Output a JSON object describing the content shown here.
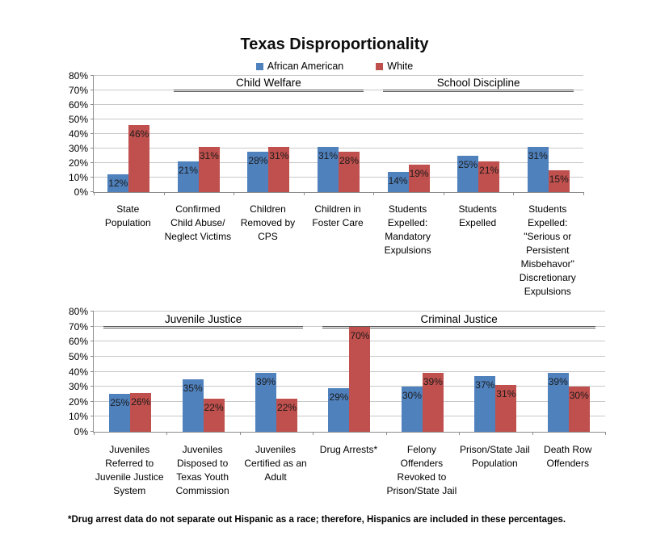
{
  "title": "Texas Disproportionality",
  "legend": [
    {
      "label": "African American",
      "color": "#4F81BD"
    },
    {
      "label": "White",
      "color": "#C0504D"
    }
  ],
  "footnote": "*Drug arrest data do not separate out Hispanic as a race; therefore, Hispanics are included in these percentages.",
  "colors": {
    "african_american": "#4F81BD",
    "white": "#C0504D",
    "gridline": "#c9c9c9",
    "axis": "#8c8c8c",
    "section_underline": "#595959"
  },
  "chart_data": [
    {
      "type": "bar",
      "title": "Texas Disproportionality (top chart)",
      "ylim": [
        0,
        80
      ],
      "yticks": [
        "0%",
        "10%",
        "20%",
        "30%",
        "40%",
        "50%",
        "60%",
        "70%",
        "80%"
      ],
      "grid": true,
      "legend_position": "top-center",
      "sections": [
        {
          "label": "Child Welfare",
          "start": 1,
          "end": 3
        },
        {
          "label": "School Discipline",
          "start": 4,
          "end": 6
        }
      ],
      "categories": [
        [
          "State",
          "Population"
        ],
        [
          "Confirmed",
          "Child Abuse/",
          "Neglect Victims"
        ],
        [
          "Children",
          "Removed by",
          "CPS"
        ],
        [
          "Children in",
          "Foster Care"
        ],
        [
          "Students",
          "Expelled:",
          "Mandatory",
          "Expulsions"
        ],
        [
          "Students",
          "Expelled"
        ],
        [
          "Students",
          "Expelled:",
          "\"Serious or",
          "Persistent",
          "Misbehavor\"",
          "Discretionary",
          "Expulsions"
        ]
      ],
      "series": [
        {
          "name": "African American",
          "color": "#4F81BD",
          "values": [
            12,
            21,
            28,
            31,
            14,
            25,
            31
          ]
        },
        {
          "name": "White",
          "color": "#C0504D",
          "values": [
            46,
            31,
            31,
            28,
            19,
            21,
            15
          ]
        }
      ]
    },
    {
      "type": "bar",
      "title": "Texas Disproportionality (bottom chart)",
      "ylim": [
        0,
        80
      ],
      "yticks": [
        "0%",
        "10%",
        "20%",
        "30%",
        "40%",
        "50%",
        "60%",
        "70%",
        "80%"
      ],
      "grid": true,
      "legend_position": "shared-top",
      "sections": [
        {
          "label": "Juvenile Justice",
          "start": 0,
          "end": 2
        },
        {
          "label": "Criminal Justice",
          "start": 3,
          "end": 6
        }
      ],
      "categories": [
        [
          "Juveniles",
          "Referred to",
          "Juvenile Justice",
          "System"
        ],
        [
          "Juveniles",
          "Disposed to",
          "Texas Youth",
          "Commission"
        ],
        [
          "Juveniles",
          "Certified as an",
          "Adult"
        ],
        [
          "Drug Arrests*"
        ],
        [
          "Felony",
          "Offenders",
          "Revoked to",
          "Prison/State Jail"
        ],
        [
          "Prison/State Jail",
          "Population"
        ],
        [
          "Death Row",
          "Offenders"
        ]
      ],
      "series": [
        {
          "name": "African American",
          "color": "#4F81BD",
          "values": [
            25,
            35,
            39,
            29,
            30,
            37,
            39
          ]
        },
        {
          "name": "White",
          "color": "#C0504D",
          "values": [
            26,
            22,
            22,
            70,
            39,
            31,
            30
          ]
        }
      ]
    }
  ]
}
